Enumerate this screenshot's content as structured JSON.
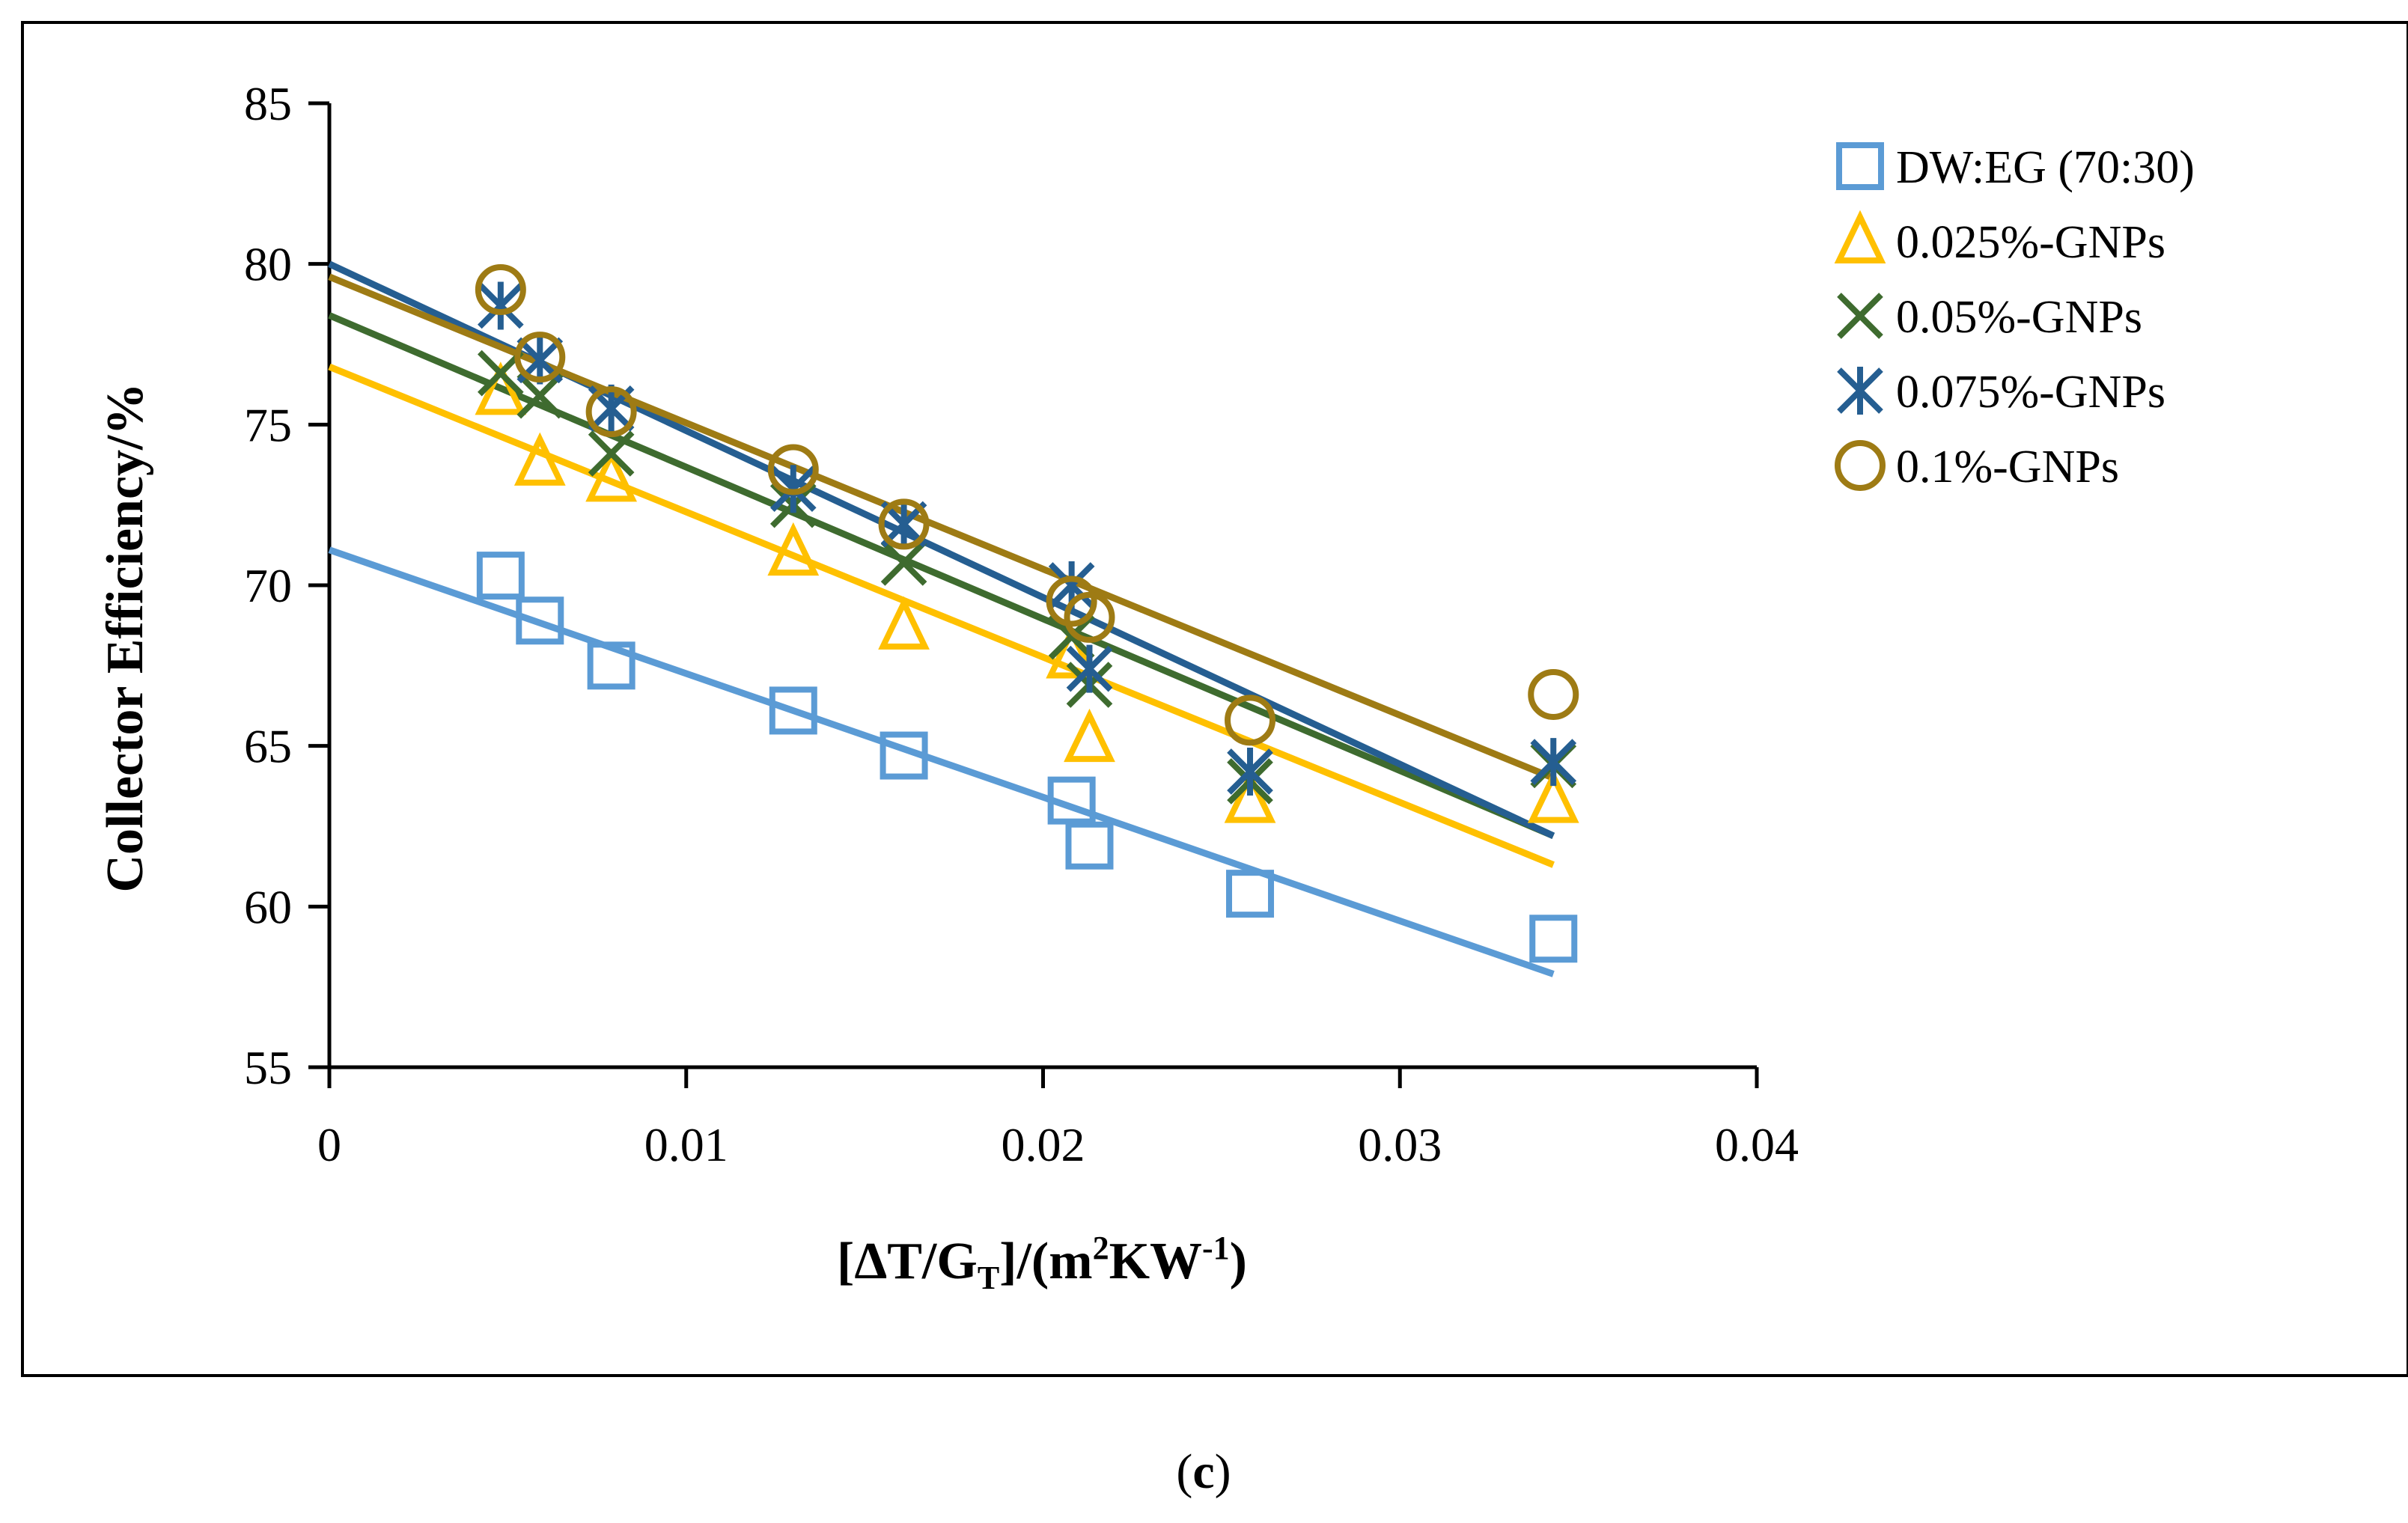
{
  "chart_data": {
    "type": "scatter",
    "caption_open": "(",
    "caption_letter": "c",
    "caption_close": ")",
    "ylabel": "Collector  Efficiency/%",
    "xlabel": {
      "open": "[ΔT/G",
      "sub": "T",
      "mid": "]/(m",
      "sup1": "2",
      "kw": "KW",
      "sup2": "-1",
      "close": ")"
    },
    "xlim": [
      0,
      0.04
    ],
    "ylim": [
      55,
      85
    ],
    "x_ticks": [
      "0",
      "0.01",
      "0.02",
      "0.03",
      "0.04"
    ],
    "y_ticks": [
      "55",
      "60",
      "65",
      "70",
      "75",
      "80",
      "85"
    ],
    "x_tick_values": [
      0,
      0.01,
      0.02,
      0.03,
      0.04
    ],
    "y_tick_values": [
      55,
      60,
      65,
      70,
      75,
      80,
      85
    ],
    "legend_position": "top-right",
    "series": [
      {
        "name": "DW:EG (70:30)",
        "marker": "square",
        "color": "#5B9BD5",
        "points": [
          [
            0.0048,
            70.3
          ],
          [
            0.0059,
            68.9
          ],
          [
            0.0079,
            67.5
          ],
          [
            0.013,
            66.1
          ],
          [
            0.0161,
            64.7
          ],
          [
            0.0208,
            63.3
          ],
          [
            0.0213,
            61.9
          ],
          [
            0.0258,
            60.4
          ],
          [
            0.0343,
            59.0
          ]
        ],
        "fit": [
          [
            0,
            71.1
          ],
          [
            0.0343,
            57.9
          ]
        ]
      },
      {
        "name": "0.025%-GNPs",
        "marker": "triangle",
        "color": "#FFC000",
        "points": [
          [
            0.0048,
            76.0
          ],
          [
            0.0059,
            73.8
          ],
          [
            0.0079,
            73.3
          ],
          [
            0.013,
            71.0
          ],
          [
            0.0161,
            68.7
          ],
          [
            0.0208,
            67.8
          ],
          [
            0.0213,
            65.2
          ],
          [
            0.0258,
            63.3
          ],
          [
            0.0343,
            63.3
          ]
        ],
        "fit": [
          [
            0,
            76.8
          ],
          [
            0.0343,
            61.3
          ]
        ]
      },
      {
        "name": "0.05%-GNPs",
        "marker": "x",
        "color": "#3E6B2F",
        "points": [
          [
            0.0048,
            76.6
          ],
          [
            0.0059,
            75.9
          ],
          [
            0.0079,
            74.1
          ],
          [
            0.013,
            72.5
          ],
          [
            0.0161,
            70.7
          ],
          [
            0.0208,
            68.4
          ],
          [
            0.0213,
            66.9
          ],
          [
            0.0258,
            63.9
          ],
          [
            0.0343,
            64.4
          ]
        ],
        "fit": [
          [
            0,
            78.4
          ],
          [
            0.0343,
            62.2
          ]
        ]
      },
      {
        "name": "0.075%-GNPs",
        "marker": "asterisk",
        "color": "#255E91",
        "points": [
          [
            0.0048,
            78.7
          ],
          [
            0.0059,
            77.0
          ],
          [
            0.0079,
            75.5
          ],
          [
            0.013,
            73.0
          ],
          [
            0.0161,
            71.9
          ],
          [
            0.0208,
            70.0
          ],
          [
            0.0213,
            67.4
          ],
          [
            0.0258,
            64.2
          ],
          [
            0.0343,
            64.5
          ]
        ],
        "fit": [
          [
            0,
            80.0
          ],
          [
            0.0343,
            62.2
          ]
        ]
      },
      {
        "name": "0.1%-GNPs",
        "marker": "circle",
        "color": "#9E7B14",
        "points": [
          [
            0.0048,
            79.2
          ],
          [
            0.0059,
            77.1
          ],
          [
            0.0079,
            75.4
          ],
          [
            0.013,
            73.6
          ],
          [
            0.0161,
            71.9
          ],
          [
            0.0208,
            69.5
          ],
          [
            0.0213,
            69.0
          ],
          [
            0.0258,
            65.8
          ],
          [
            0.0343,
            66.6
          ]
        ],
        "fit": [
          [
            0,
            79.6
          ],
          [
            0.0343,
            64.0
          ]
        ]
      }
    ]
  }
}
